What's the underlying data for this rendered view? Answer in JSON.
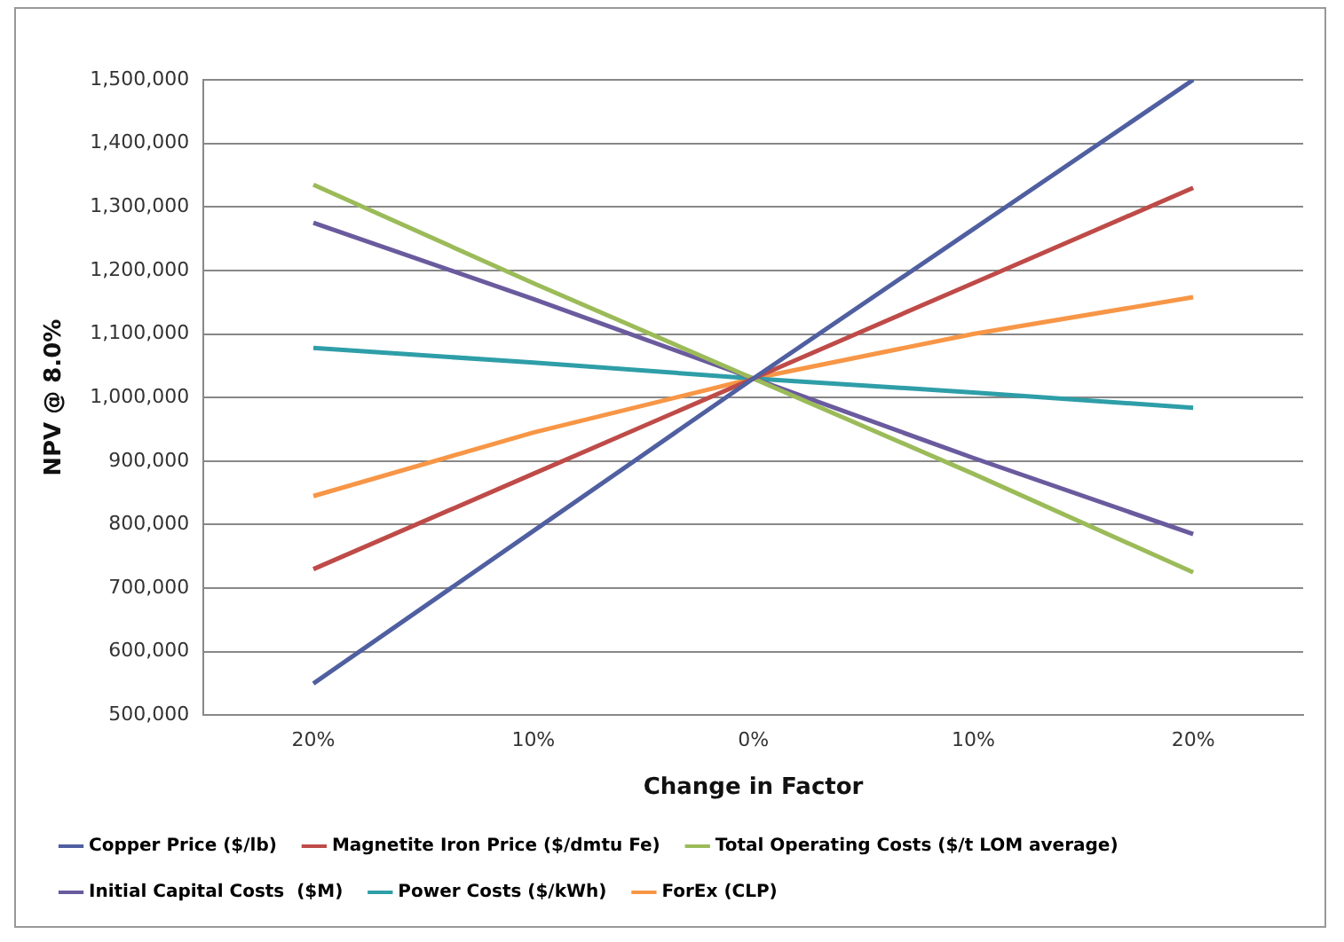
{
  "chart_data": {
    "type": "line",
    "xlabel": "Change in Factor",
    "ylabel": "NPV @ 8.0%",
    "categories": [
      "20%",
      "10%",
      "0%",
      "10%",
      "20%"
    ],
    "series": [
      {
        "name": "Copper Price ($/lb)",
        "color": "#4f5fa0",
        "values": [
          550000,
          790000,
          1030000,
          1265000,
          1500000
        ]
      },
      {
        "name": "Magnetite Iron Price ($/dmtu Fe)",
        "color": "#be4b48",
        "values": [
          730000,
          880000,
          1030000,
          1180000,
          1330000
        ]
      },
      {
        "name": "Total Operating Costs ($/t LOM average)",
        "color": "#9bbb59",
        "values": [
          1335000,
          1180000,
          1030000,
          880000,
          725000
        ]
      },
      {
        "name": "Initial Capital Costs  ($M)",
        "color": "#6a5a9e",
        "values": [
          1275000,
          1155000,
          1030000,
          905000,
          785000
        ]
      },
      {
        "name": "Power Costs ($/kWh)",
        "color": "#2e9ea8",
        "values": [
          1078000,
          1055000,
          1030000,
          1008000,
          984000
        ]
      },
      {
        "name": "ForEx (CLP)",
        "color": "#f79646",
        "values": [
          845000,
          945000,
          1030000,
          1100000,
          1158000
        ]
      }
    ],
    "ylim": [
      500000,
      1500000
    ],
    "yticks": [
      {
        "value": 500000,
        "label": "500,000"
      },
      {
        "value": 600000,
        "label": "600,000"
      },
      {
        "value": 700000,
        "label": "700,000"
      },
      {
        "value": 800000,
        "label": "800,000"
      },
      {
        "value": 900000,
        "label": "900,000"
      },
      {
        "value": 1000000,
        "label": "1,000,000"
      },
      {
        "value": 1100000,
        "label": "1,100,000"
      },
      {
        "value": 1200000,
        "label": "1,200,000"
      },
      {
        "value": 1300000,
        "label": "1,300,000"
      },
      {
        "value": 1400000,
        "label": "1,400,000"
      },
      {
        "value": 1500000,
        "label": "1,500,000"
      }
    ],
    "grid": "y",
    "legend": "bottom",
    "marker": "none",
    "line_style": "solid"
  }
}
